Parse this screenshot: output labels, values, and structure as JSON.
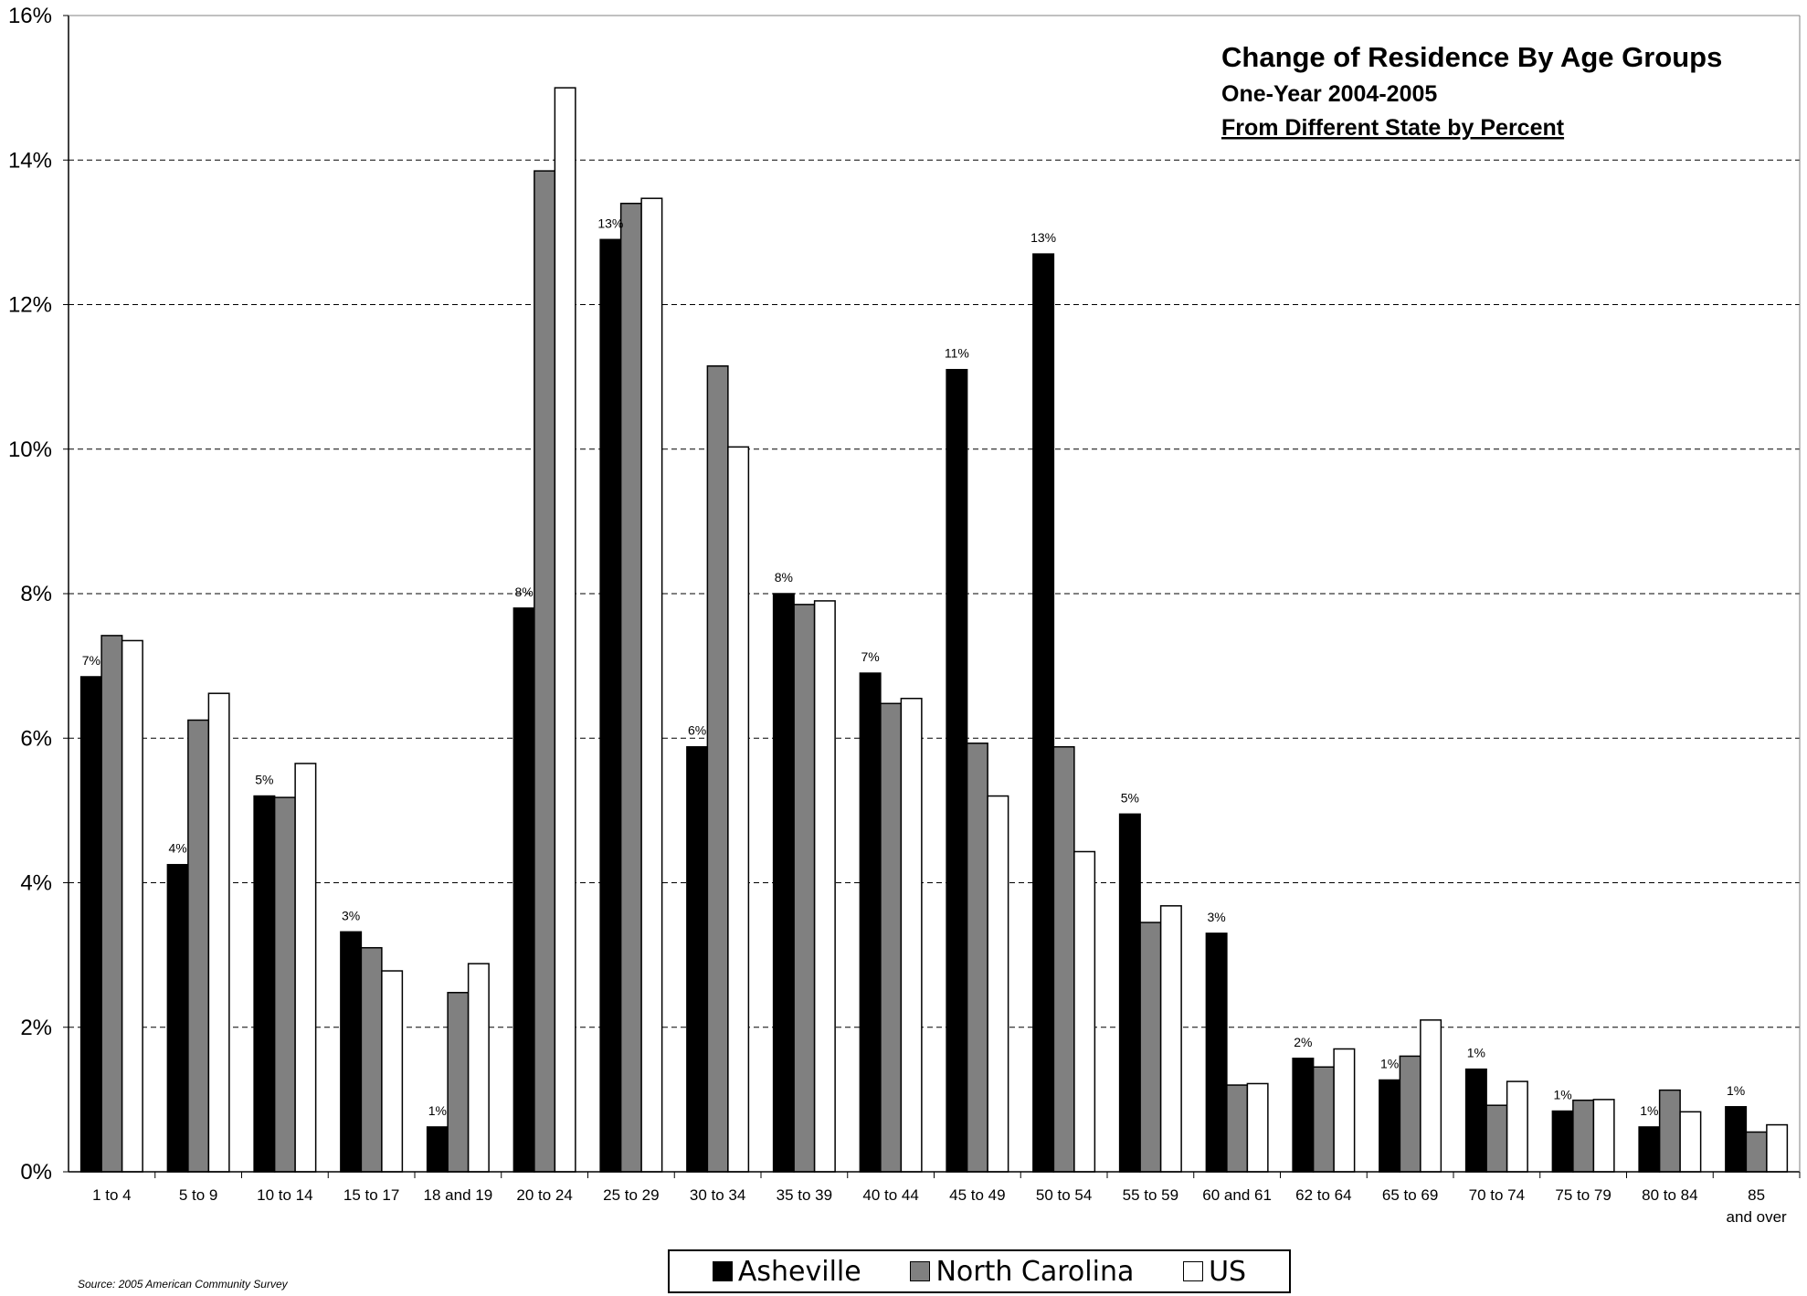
{
  "chart_data": {
    "type": "bar",
    "title": "Change of Residence By Age Groups",
    "subtitle": "One-Year 2004-2005",
    "subtitle2": "From Different State by Percent",
    "xlabel": "",
    "ylabel": "",
    "ylim": [
      0,
      16
    ],
    "yticks": [
      "0%",
      "2%",
      "4%",
      "6%",
      "8%",
      "10%",
      "12%",
      "14%",
      "16%"
    ],
    "grid": "horizontal dashed",
    "legend_position": "bottom-center",
    "categories": [
      "1 to 4",
      "5 to 9",
      "10 to 14",
      "15 to 17",
      "18 and 19",
      "20 to 24",
      "25 to 29",
      "30 to 34",
      "35 to 39",
      "40 to 44",
      "45 to 49",
      "50 to 54",
      "55 to 59",
      "60 and 61",
      "62 to 64",
      "65 to 69",
      "70 to 74",
      "75 to 79",
      "80 to 84",
      "85  and over"
    ],
    "series": [
      {
        "name": "Asheville",
        "color": "#000000",
        "values": [
          6.85,
          4.25,
          5.2,
          3.32,
          0.62,
          7.8,
          12.9,
          5.88,
          8.0,
          6.9,
          11.1,
          12.7,
          4.95,
          3.3,
          1.57,
          1.27,
          1.42,
          0.84,
          0.62,
          0.9
        ]
      },
      {
        "name": "North Carolina",
        "color": "#808080",
        "values": [
          7.42,
          6.25,
          5.18,
          3.1,
          2.48,
          13.85,
          13.4,
          11.15,
          7.85,
          6.48,
          5.93,
          5.88,
          3.45,
          1.2,
          1.45,
          1.6,
          0.92,
          0.99,
          1.13,
          0.55
        ]
      },
      {
        "name": "US",
        "color": "#ffffff",
        "values": [
          7.35,
          6.62,
          5.65,
          2.78,
          2.88,
          15.0,
          13.47,
          10.03,
          7.9,
          6.55,
          5.2,
          4.43,
          3.68,
          1.22,
          1.7,
          2.1,
          1.25,
          1.0,
          0.83,
          0.65
        ]
      }
    ],
    "data_labels": [
      "7%",
      "4%",
      "5%",
      "3%",
      "1%",
      "8%",
      "13%",
      "6%",
      "8%",
      "7%",
      "11%",
      "13%",
      "5%",
      "3%",
      "2%",
      "1%",
      "1%",
      "1%",
      "1%",
      "1%"
    ]
  },
  "source_note": "Source: 2005 American Community Survey",
  "legend": [
    {
      "name": "Asheville",
      "color": "#000000"
    },
    {
      "name": "North Carolina",
      "color": "#808080"
    },
    {
      "name": "US",
      "color": "#ffffff"
    }
  ]
}
